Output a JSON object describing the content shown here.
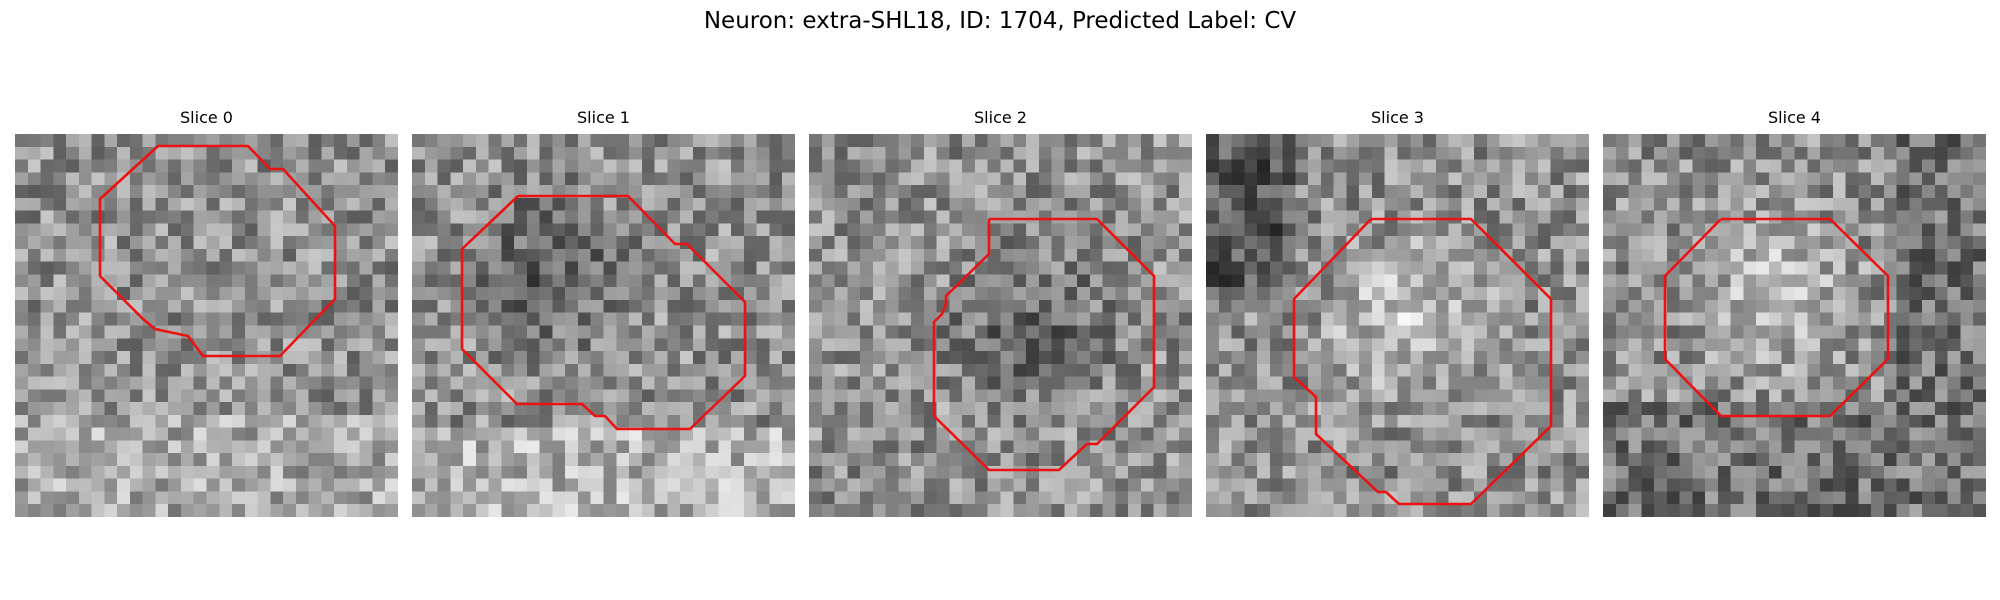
{
  "figure": {
    "title": "Neuron: extra-SHL18, ID: 1704, Predicted Label: CV"
  },
  "slices": [
    {
      "label": "Slice 0",
      "contour_color": "#ee1111",
      "seed": 11,
      "tone": "mottled"
    },
    {
      "label": "Slice 1",
      "contour_color": "#ee1111",
      "seed": 23,
      "tone": "dark-center"
    },
    {
      "label": "Slice 2",
      "contour_color": "#ee1111",
      "seed": 37,
      "tone": "dark-center"
    },
    {
      "label": "Slice 3",
      "contour_color": "#ee1111",
      "seed": 51,
      "tone": "bright-center"
    },
    {
      "label": "Slice 4",
      "contour_color": "#ee1111",
      "seed": 67,
      "tone": "bright-center"
    }
  ]
}
